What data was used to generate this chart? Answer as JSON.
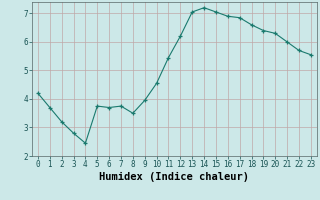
{
  "x": [
    0,
    1,
    2,
    3,
    4,
    5,
    6,
    7,
    8,
    9,
    10,
    11,
    12,
    13,
    14,
    15,
    16,
    17,
    18,
    19,
    20,
    21,
    22,
    23
  ],
  "y": [
    4.2,
    3.7,
    3.2,
    2.8,
    2.45,
    3.75,
    3.7,
    3.75,
    3.5,
    3.95,
    4.55,
    5.45,
    6.2,
    7.05,
    7.2,
    7.05,
    6.9,
    6.85,
    6.6,
    6.4,
    6.3,
    6.0,
    5.7,
    5.55
  ],
  "xlabel": "Humidex (Indice chaleur)",
  "ylim": [
    2,
    7.4
  ],
  "xlim": [
    -0.5,
    23.5
  ],
  "yticks": [
    2,
    3,
    4,
    5,
    6,
    7
  ],
  "xticks": [
    0,
    1,
    2,
    3,
    4,
    5,
    6,
    7,
    8,
    9,
    10,
    11,
    12,
    13,
    14,
    15,
    16,
    17,
    18,
    19,
    20,
    21,
    22,
    23
  ],
  "line_color": "#1a7a6e",
  "marker_color": "#1a7a6e",
  "bg_color": "#cce8e8",
  "grid_color": "#c0a8a8",
  "axis_bg": "#cce8e8",
  "xlabel_color": "#000000",
  "tick_fontsize": 5.5,
  "xlabel_fontsize": 7.5
}
